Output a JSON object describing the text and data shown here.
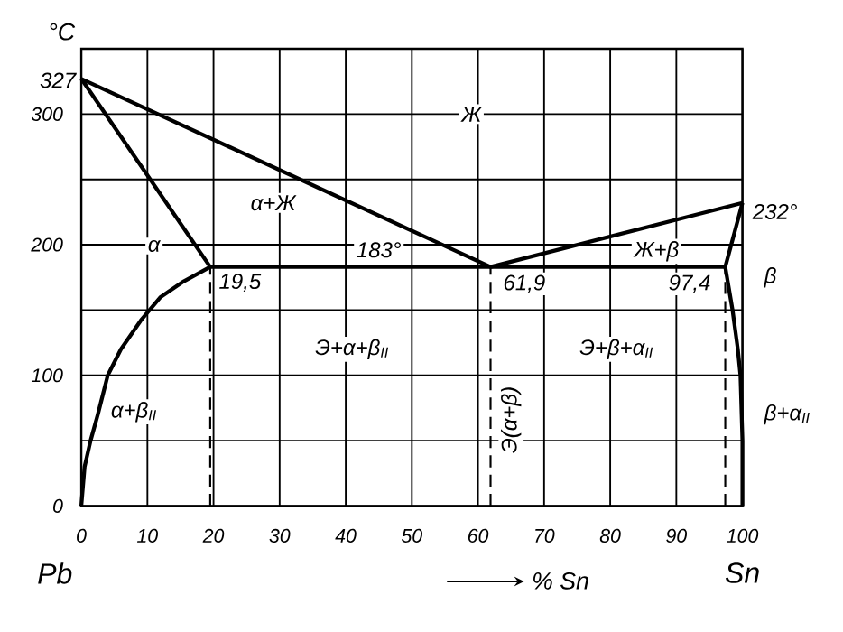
{
  "chart_data": {
    "type": "line",
    "xlabel": "% Sn",
    "ylabel": "°C",
    "xlim": [
      0,
      100
    ],
    "ylim": [
      0,
      350
    ],
    "xticks": [
      0,
      10,
      20,
      30,
      40,
      50,
      60,
      70,
      80,
      90,
      100
    ],
    "yticks": [
      0,
      {
        "value": 50,
        "label": null
      },
      100,
      {
        "value": 150,
        "label": null
      },
      200,
      {
        "value": 250,
        "label": null
      },
      300,
      {
        "value": 350,
        "label": null
      }
    ],
    "grid": true,
    "marker": "none",
    "line_style": "solid",
    "series": [
      {
        "color": "#000000",
        "x": [
          0,
          61.9,
          100
        ],
        "values": [
          327,
          183,
          232
        ]
      },
      {
        "color": "#000000",
        "x": [
          0,
          0.5,
          1.4,
          2.5,
          4,
          6,
          9,
          12,
          15.5,
          19.5,
          0
        ],
        "values": [
          0,
          30,
          50,
          70,
          100,
          120,
          142,
          160,
          172,
          183,
          327
        ]
      },
      {
        "color": "#000000",
        "x": [
          19.5,
          97.4
        ],
        "values": [
          183,
          183
        ]
      },
      {
        "color": "#000000",
        "x": [
          100,
          97.4,
          98.5,
          99.3,
          99.7,
          100,
          100
        ],
        "values": [
          232,
          183,
          150,
          120,
          100,
          50,
          0
        ]
      },
      {
        "color": "#000000",
        "line_style": "dashed",
        "x": [
          19.5,
          19.5
        ],
        "values": [
          0,
          183
        ]
      },
      {
        "color": "#000000",
        "line_style": "dashed",
        "x": [
          61.9,
          61.9
        ],
        "values": [
          0,
          183
        ]
      },
      {
        "color": "#000000",
        "line_style": "dashed",
        "x": [
          97.4,
          97.4
        ],
        "values": [
          0,
          183
        ]
      }
    ],
    "annotations": [
      {
        "text": "327",
        "x": 0,
        "y": 327
      },
      {
        "text": "Ж",
        "x": 59,
        "y": 300
      },
      {
        "text": "α+Ж",
        "x": 29,
        "y": 232
      },
      {
        "text": "α",
        "x": 11,
        "y": 199
      },
      {
        "text": "183°",
        "x": 45,
        "y": 196
      },
      {
        "text": "19,5",
        "x": 24,
        "y": 171
      },
      {
        "text": "61,9",
        "x": 67,
        "y": 170
      },
      {
        "text": "97,4",
        "x": 92,
        "y": 170
      },
      {
        "text": "Ж+β",
        "x": 87,
        "y": 195
      },
      {
        "text": "232°",
        "x": 100,
        "y": 232
      },
      {
        "text": "Э+α+β$_{II}$",
        "x": 41,
        "y": 120
      },
      {
        "text": "Э+β+α$_{II}$",
        "x": 81,
        "y": 120
      },
      {
        "text": "Э(α+β)",
        "x": 65,
        "y": 66
      },
      {
        "text": "α+β$_{II}$",
        "x": 8,
        "y": 72
      },
      "β",
      "β+α$_{II}$",
      "Pb",
      "Sn"
    ]
  }
}
